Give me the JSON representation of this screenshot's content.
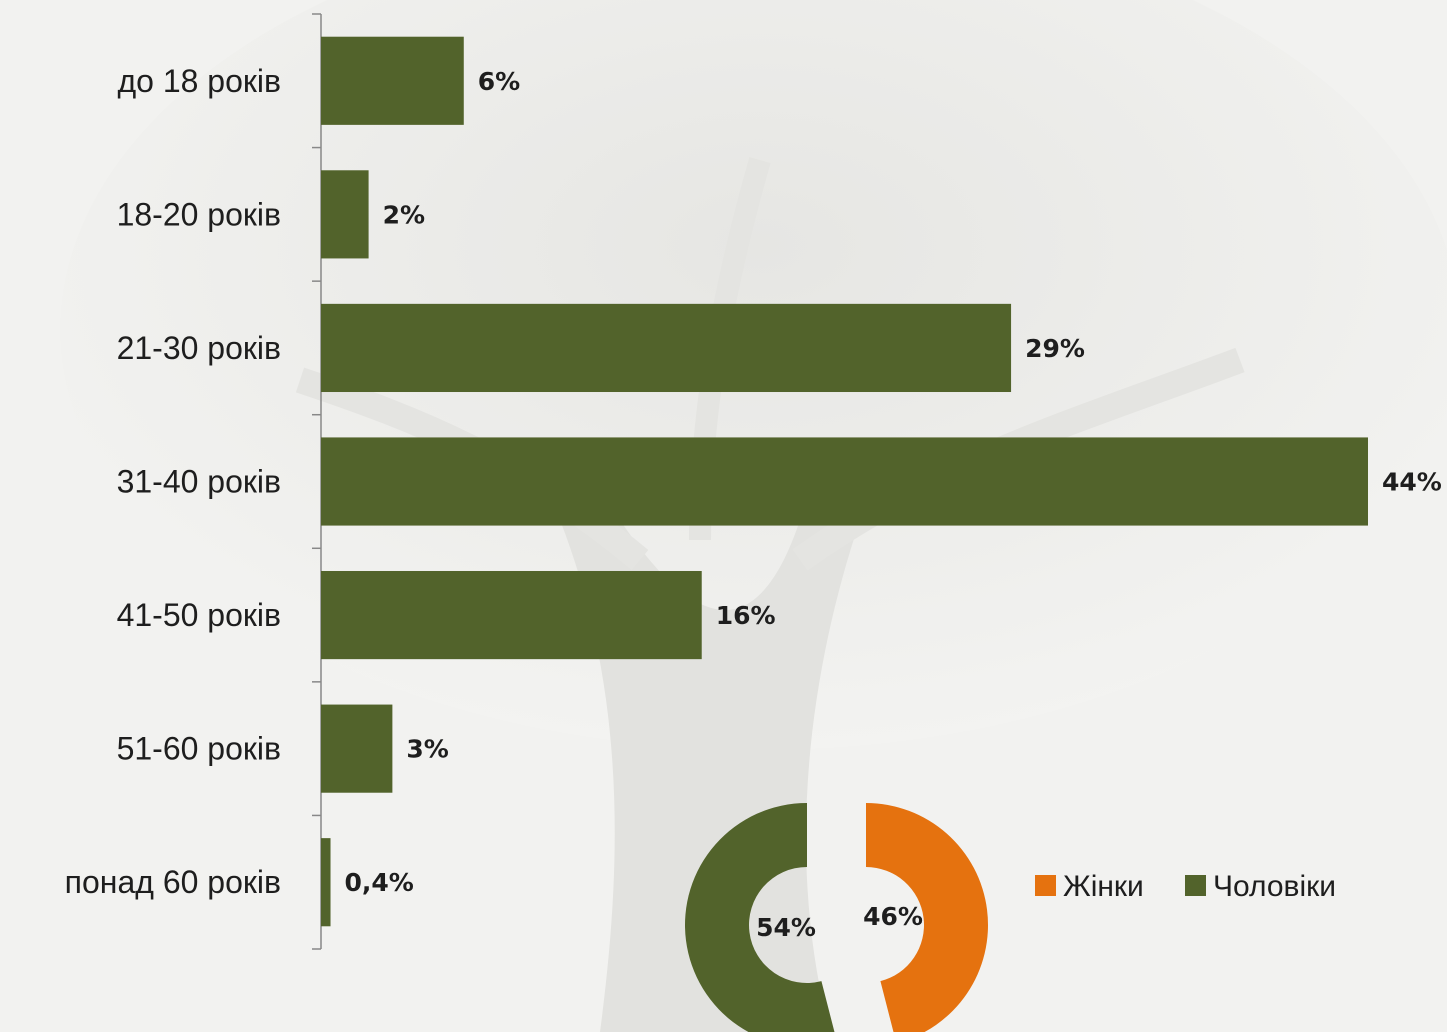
{
  "chart_data": [
    {
      "type": "bar",
      "orientation": "horizontal",
      "categories": [
        "до 18 років",
        "18-20 років",
        "21-30 років",
        "31-40 років",
        "41-50 років",
        "51-60 років",
        "понад 60 років"
      ],
      "values": [
        6,
        2,
        29,
        44,
        16,
        3,
        0.4
      ],
      "value_labels": [
        "6%",
        "2%",
        "29%",
        "44%",
        "16%",
        "3%",
        "0,4%"
      ],
      "value_unit": "%",
      "xlim": [
        0,
        44
      ],
      "grid": false,
      "colors": {
        "bar": "#52632b"
      }
    },
    {
      "type": "pie",
      "style": "donut",
      "series": [
        {
          "name": "Жінки",
          "value": 46,
          "label": "46%",
          "color": "#e5720f"
        },
        {
          "name": "Чоловіки",
          "value": 54,
          "label": "54%",
          "color": "#52632b"
        }
      ],
      "legend": {
        "placement": "right",
        "items": [
          "Жінки",
          "Чоловіки"
        ]
      }
    }
  ]
}
